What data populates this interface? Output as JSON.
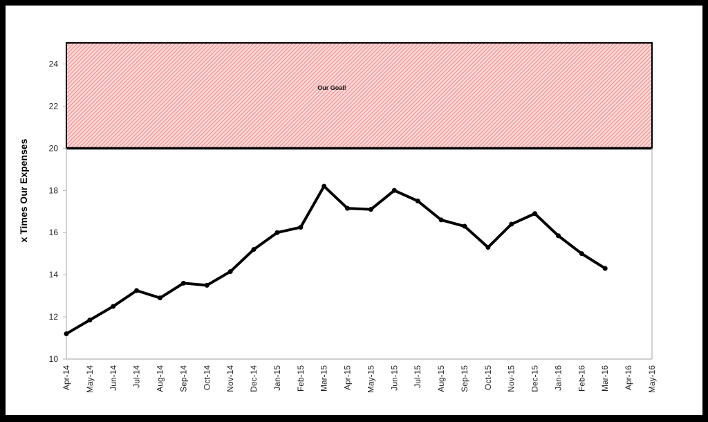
{
  "chart_data": {
    "type": "line",
    "title": "",
    "xlabel": "",
    "ylabel": "x Times Our Expenses",
    "ylim": [
      10,
      25
    ],
    "yticks": [
      10,
      12,
      14,
      16,
      18,
      20,
      22,
      24
    ],
    "grid": false,
    "legend": null,
    "categories": [
      "Apr-14",
      "May-14",
      "Jun-14",
      "Jul-14",
      "Aug-14",
      "Sep-14",
      "Oct-14",
      "Nov-14",
      "Dec-14",
      "Jan-15",
      "Feb-15",
      "Mar-15",
      "Apr-15",
      "May-15",
      "Jun-15",
      "Jul-15",
      "Aug-15",
      "Sep-15",
      "Oct-15",
      "Nov-15",
      "Dec-15",
      "Jan-16",
      "Feb-16",
      "Mar-16",
      "Apr-16",
      "May-16"
    ],
    "series": [
      {
        "name": "x Times Our Expenses",
        "color": "#000000",
        "marker": "circle",
        "values": [
          11.2,
          11.85,
          12.5,
          13.25,
          12.9,
          13.6,
          13.5,
          14.15,
          15.2,
          16.0,
          16.25,
          18.2,
          17.15,
          17.1,
          18.0,
          17.5,
          16.6,
          16.3,
          15.3,
          16.4,
          16.9,
          15.85,
          15.0,
          14.3,
          null,
          null
        ]
      }
    ],
    "annotations": [
      {
        "type": "band",
        "label": "Our Goal!",
        "y_from": 20,
        "y_to": 25,
        "fill": "#f4a3a3",
        "hatch": "diagonal",
        "border": "#000000"
      }
    ]
  }
}
